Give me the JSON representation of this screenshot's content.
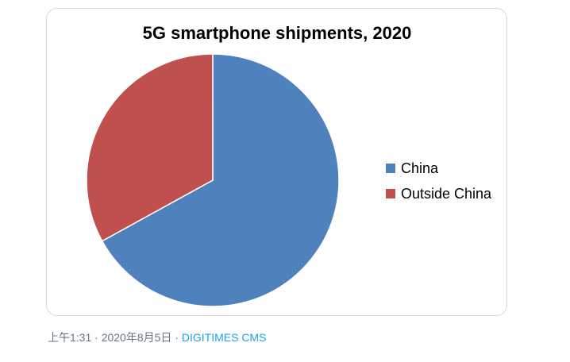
{
  "chart_data": {
    "type": "pie",
    "title": "5G smartphone shipments, 2020",
    "categories": [
      "China",
      "Outside China"
    ],
    "values": [
      67,
      33
    ],
    "colors": [
      "#4f81bd",
      "#c0504d"
    ],
    "legend_position": "right",
    "start_angle_deg": 0,
    "direction": "clockwise"
  },
  "tweet_meta": {
    "time": "上午1:31",
    "separator1": " · ",
    "date": "2020年8月5日",
    "separator2": " · ",
    "source": "DIGITIMES CMS"
  }
}
